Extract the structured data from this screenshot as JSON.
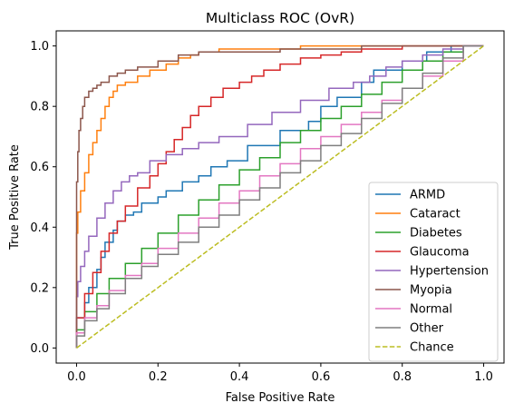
{
  "chart_data": {
    "type": "line",
    "title": "Multiclass ROC (OvR)",
    "xlabel": "False Positive Rate",
    "ylabel": "True Positive Rate",
    "xlim": [
      -0.05,
      1.05
    ],
    "ylim": [
      -0.05,
      1.05
    ],
    "xticks": [
      0.0,
      0.2,
      0.4,
      0.6,
      0.8,
      1.0
    ],
    "yticks": [
      0.0,
      0.2,
      0.4,
      0.6,
      0.8,
      1.0
    ],
    "xtick_labels": [
      "0.0",
      "0.2",
      "0.4",
      "0.6",
      "0.8",
      "1.0"
    ],
    "ytick_labels": [
      "0.0",
      "0.2",
      "0.4",
      "0.6",
      "0.8",
      "1.0"
    ],
    "grid": false,
    "legend_position": "lower-right",
    "series": [
      {
        "name": "ARMD",
        "color": "#1f77b4",
        "x": [
          0.0,
          0.0,
          0.02,
          0.03,
          0.05,
          0.06,
          0.07,
          0.09,
          0.1,
          0.12,
          0.14,
          0.16,
          0.2,
          0.22,
          0.26,
          0.3,
          0.33,
          0.37,
          0.42,
          0.5,
          0.57,
          0.6,
          0.64,
          0.7,
          0.73,
          0.8,
          0.86,
          0.92,
          0.96,
          1.0
        ],
        "y": [
          0.0,
          0.05,
          0.1,
          0.15,
          0.2,
          0.26,
          0.3,
          0.35,
          0.39,
          0.42,
          0.44,
          0.45,
          0.48,
          0.5,
          0.52,
          0.55,
          0.57,
          0.6,
          0.62,
          0.67,
          0.72,
          0.75,
          0.8,
          0.83,
          0.88,
          0.92,
          0.95,
          0.98,
          1.0,
          1.0
        ]
      },
      {
        "name": "Cataract",
        "color": "#ff7f0e",
        "x": [
          0.0,
          0.0,
          0.003,
          0.01,
          0.02,
          0.03,
          0.04,
          0.05,
          0.06,
          0.07,
          0.08,
          0.09,
          0.1,
          0.12,
          0.15,
          0.18,
          0.22,
          0.25,
          0.28,
          0.3,
          0.35,
          0.45,
          0.55,
          0.7,
          0.85,
          1.0
        ],
        "y": [
          0.0,
          0.3,
          0.38,
          0.45,
          0.52,
          0.58,
          0.64,
          0.68,
          0.72,
          0.76,
          0.8,
          0.83,
          0.85,
          0.87,
          0.88,
          0.9,
          0.92,
          0.94,
          0.96,
          0.97,
          0.98,
          0.99,
          0.99,
          1.0,
          1.0,
          1.0
        ]
      },
      {
        "name": "Diabetes",
        "color": "#2ca02c",
        "x": [
          0.0,
          0.02,
          0.05,
          0.08,
          0.12,
          0.16,
          0.2,
          0.25,
          0.3,
          0.35,
          0.4,
          0.45,
          0.5,
          0.55,
          0.6,
          0.65,
          0.7,
          0.75,
          0.8,
          0.85,
          0.9,
          0.95,
          1.0
        ],
        "y": [
          0.0,
          0.06,
          0.12,
          0.18,
          0.23,
          0.28,
          0.33,
          0.38,
          0.44,
          0.49,
          0.54,
          0.59,
          0.63,
          0.68,
          0.72,
          0.76,
          0.8,
          0.84,
          0.88,
          0.92,
          0.95,
          0.98,
          1.0
        ]
      },
      {
        "name": "Glaucoma",
        "color": "#d62728",
        "x": [
          0.0,
          0.02,
          0.04,
          0.06,
          0.08,
          0.1,
          0.12,
          0.15,
          0.18,
          0.2,
          0.22,
          0.24,
          0.26,
          0.28,
          0.3,
          0.33,
          0.36,
          0.4,
          0.43,
          0.46,
          0.5,
          0.55,
          0.6,
          0.65,
          0.7,
          0.8,
          0.9,
          1.0
        ],
        "y": [
          0.0,
          0.1,
          0.18,
          0.25,
          0.32,
          0.38,
          0.42,
          0.47,
          0.53,
          0.57,
          0.61,
          0.65,
          0.69,
          0.73,
          0.77,
          0.8,
          0.83,
          0.86,
          0.88,
          0.9,
          0.92,
          0.94,
          0.96,
          0.97,
          0.98,
          0.99,
          1.0,
          1.0
        ]
      },
      {
        "name": "Hypertension",
        "color": "#9467bd",
        "x": [
          0.0,
          0.003,
          0.01,
          0.02,
          0.03,
          0.05,
          0.07,
          0.09,
          0.11,
          0.13,
          0.15,
          0.18,
          0.22,
          0.26,
          0.3,
          0.35,
          0.42,
          0.48,
          0.55,
          0.62,
          0.68,
          0.72,
          0.76,
          0.8,
          0.85,
          0.9,
          0.95,
          1.0
        ],
        "y": [
          0.0,
          0.17,
          0.22,
          0.27,
          0.32,
          0.37,
          0.43,
          0.48,
          0.52,
          0.55,
          0.57,
          0.58,
          0.62,
          0.64,
          0.66,
          0.68,
          0.7,
          0.74,
          0.78,
          0.82,
          0.86,
          0.88,
          0.9,
          0.93,
          0.95,
          0.97,
          0.99,
          1.0
        ]
      },
      {
        "name": "Myopia",
        "color": "#8c564b",
        "x": [
          0.0,
          0.0,
          0.003,
          0.006,
          0.01,
          0.015,
          0.02,
          0.03,
          0.04,
          0.05,
          0.06,
          0.08,
          0.1,
          0.12,
          0.15,
          0.2,
          0.25,
          0.3,
          0.4,
          0.5,
          0.7,
          0.85,
          1.0
        ],
        "y": [
          0.0,
          0.4,
          0.55,
          0.65,
          0.72,
          0.76,
          0.8,
          0.83,
          0.85,
          0.86,
          0.87,
          0.88,
          0.9,
          0.91,
          0.92,
          0.93,
          0.95,
          0.97,
          0.98,
          0.98,
          0.99,
          1.0,
          1.0
        ]
      },
      {
        "name": "Normal",
        "color": "#e377c2",
        "x": [
          0.0,
          0.02,
          0.05,
          0.08,
          0.12,
          0.16,
          0.2,
          0.25,
          0.3,
          0.35,
          0.4,
          0.45,
          0.5,
          0.55,
          0.6,
          0.65,
          0.7,
          0.75,
          0.8,
          0.85,
          0.9,
          0.95,
          1.0
        ],
        "y": [
          0.0,
          0.05,
          0.1,
          0.14,
          0.19,
          0.24,
          0.28,
          0.33,
          0.38,
          0.43,
          0.48,
          0.52,
          0.57,
          0.61,
          0.66,
          0.7,
          0.74,
          0.78,
          0.82,
          0.86,
          0.9,
          0.95,
          1.0
        ]
      },
      {
        "name": "Other",
        "color": "#7f7f7f",
        "x": [
          0.0,
          0.02,
          0.05,
          0.08,
          0.12,
          0.16,
          0.2,
          0.25,
          0.3,
          0.35,
          0.4,
          0.45,
          0.5,
          0.55,
          0.6,
          0.65,
          0.7,
          0.75,
          0.8,
          0.85,
          0.9,
          0.95,
          1.0
        ],
        "y": [
          0.0,
          0.04,
          0.09,
          0.13,
          0.18,
          0.23,
          0.27,
          0.31,
          0.35,
          0.4,
          0.44,
          0.49,
          0.53,
          0.58,
          0.62,
          0.67,
          0.71,
          0.76,
          0.81,
          0.86,
          0.91,
          0.96,
          1.0
        ]
      },
      {
        "name": "Chance",
        "color": "#bcbd22",
        "dashed": true,
        "x": [
          0.0,
          1.0
        ],
        "y": [
          0.0,
          1.0
        ]
      }
    ]
  }
}
